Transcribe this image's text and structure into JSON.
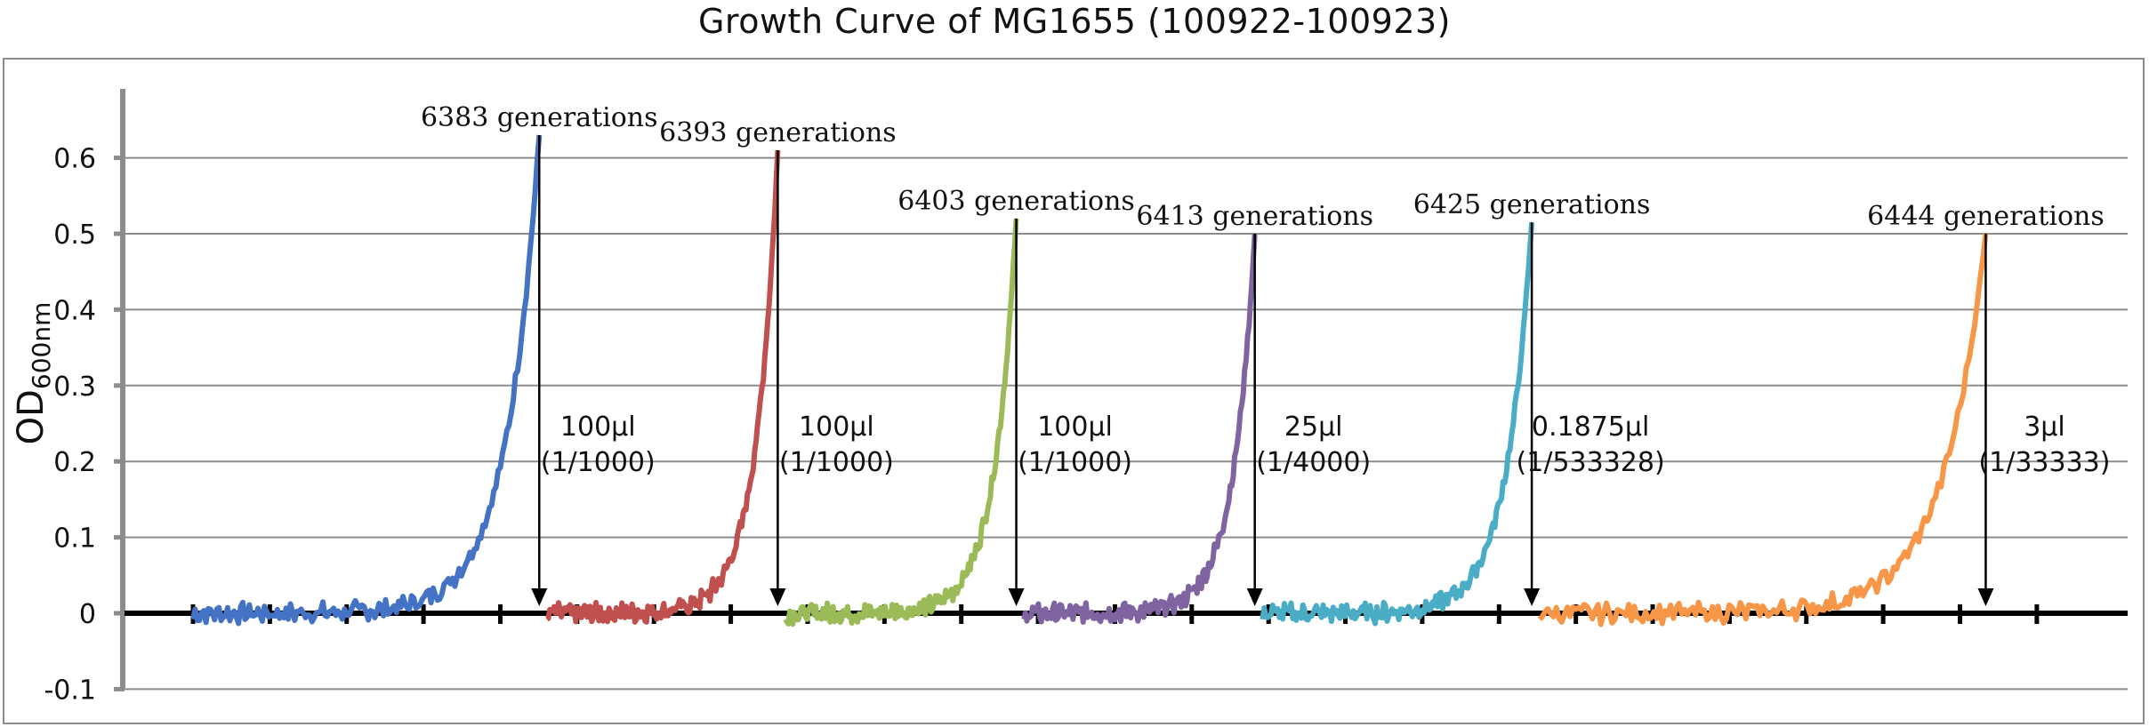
{
  "chart_data": {
    "type": "line",
    "title": "Growth Curve of MG1655 (100922-100923)",
    "ylabel_main": "OD",
    "ylabel_sub": "600nm",
    "xlabel": "",
    "ylim": [
      -0.1,
      0.65
    ],
    "yticks": [
      "-0.1",
      "0",
      "0.1",
      "0.2",
      "0.3",
      "0.4",
      "0.5",
      "0.6"
    ],
    "ytick_values": [
      -0.1,
      0,
      0.1,
      0.2,
      0.3,
      0.4,
      0.5,
      0.6
    ],
    "grid": true,
    "x_ticks_count": 25,
    "segments": [
      {
        "color": "#4472c4",
        "start": 0.0,
        "end": 4.5,
        "peak": 0.63,
        "label": "6383 generations",
        "vol": "100μl",
        "dilution": "(1/1000)"
      },
      {
        "color": "#c0504d",
        "start": 4.6,
        "end": 7.6,
        "peak": 0.61,
        "label": "6393 generations",
        "vol": "100μl",
        "dilution": "(1/1000)"
      },
      {
        "color": "#9bbb59",
        "start": 7.7,
        "end": 10.7,
        "peak": 0.52,
        "label": "6403 generations",
        "vol": "100μl",
        "dilution": "(1/1000)"
      },
      {
        "color": "#8064a2",
        "start": 10.8,
        "end": 13.8,
        "peak": 0.5,
        "label": "6413 generations",
        "vol": "25μl",
        "dilution": "(1/4000)"
      },
      {
        "color": "#4bacc6",
        "start": 13.9,
        "end": 17.4,
        "peak": 0.515,
        "label": "6425 generations",
        "vol": "0.1875μl",
        "dilution": "(1/533328)"
      },
      {
        "color": "#f79646",
        "start": 17.5,
        "end": 23.3,
        "peak": 0.5,
        "label": "6444 generations",
        "vol": "3μl",
        "dilution": "(1/33333)"
      }
    ]
  }
}
